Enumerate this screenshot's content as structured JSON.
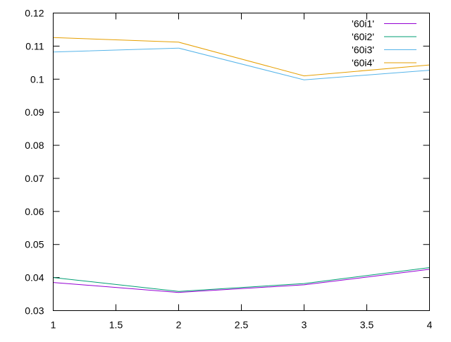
{
  "chart_data": {
    "type": "line",
    "title": "",
    "xlabel": "",
    "ylabel": "",
    "xlim": [
      1,
      4
    ],
    "ylim": [
      0.03,
      0.12
    ],
    "x_ticks": [
      1,
      1.5,
      2,
      2.5,
      3,
      3.5,
      4
    ],
    "x_tick_labels": [
      "1",
      "1.5",
      "2",
      "2.5",
      "3",
      "3.5",
      "4"
    ],
    "y_ticks": [
      0.03,
      0.04,
      0.05,
      0.06,
      0.07,
      0.08,
      0.09,
      0.1,
      0.11,
      0.12
    ],
    "y_tick_labels": [
      "0.03",
      "0.04",
      "0.05",
      "0.06",
      "0.07",
      "0.08",
      "0.09",
      "0.1",
      "0.11",
      "0.12"
    ],
    "grid": false,
    "legend_position": "top-right",
    "x": [
      1,
      2,
      3,
      4
    ],
    "series": [
      {
        "name": "'60i1'",
        "color": "#9400d3",
        "values": [
          0.0385,
          0.0355,
          0.0378,
          0.0425
        ]
      },
      {
        "name": "'60i2'",
        "color": "#009e73",
        "values": [
          0.04,
          0.0358,
          0.0382,
          0.043
        ]
      },
      {
        "name": "'60i3'",
        "color": "#56b4e9",
        "values": [
          0.1082,
          0.1094,
          0.0998,
          0.1027
        ]
      },
      {
        "name": "'60i4'",
        "color": "#e69f00",
        "values": [
          0.1126,
          0.1112,
          0.101,
          0.1043
        ]
      }
    ]
  }
}
